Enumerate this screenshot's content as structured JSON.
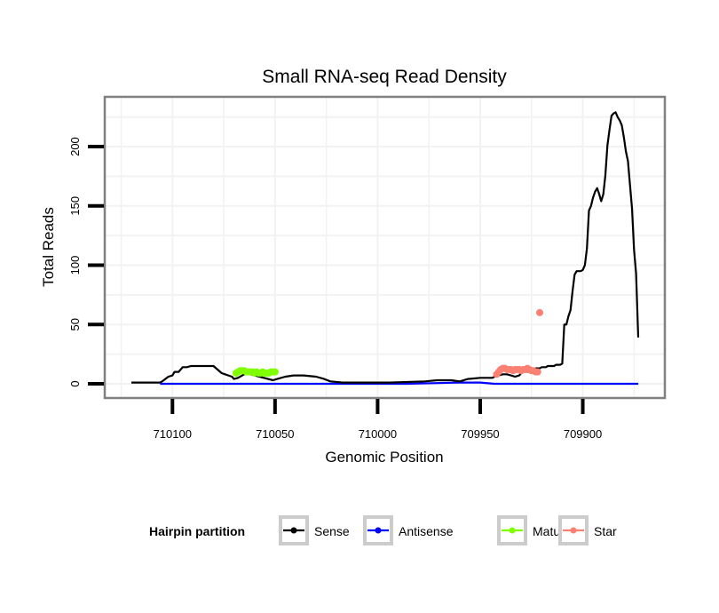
{
  "chart_data": {
    "type": "line",
    "title": "Small RNA-seq Read Density",
    "xlabel": "Genomic Position",
    "ylabel": "Total Reads",
    "x_reversed": true,
    "xlim": [
      710133,
      709860
    ],
    "ylim": [
      -12,
      242
    ],
    "x_ticks": [
      710100,
      710050,
      710000,
      709950,
      709900
    ],
    "x_tick_labels": [
      "710100",
      "710050",
      "710000",
      "709950",
      "709900"
    ],
    "y_ticks": [
      0,
      50,
      100,
      150,
      200
    ],
    "y_tick_labels": [
      "0",
      "50",
      "100",
      "150",
      "200"
    ],
    "grid": true,
    "legend": {
      "title": "Hairpin partition",
      "placement": "bottom",
      "entries": [
        {
          "label": "Sense",
          "color": "#000000"
        },
        {
          "label": "Antisense",
          "color": "#0000ff"
        },
        {
          "label": "Mature",
          "color": "#80ff00"
        },
        {
          "label": "Star",
          "color": "#fa8072"
        }
      ]
    },
    "series": [
      {
        "name": "Sense",
        "color": "#000000",
        "markers": false,
        "x": [
          710120,
          710106,
          710105,
          710102,
          710100,
          710099,
          710097,
          710095,
          710093,
          710091,
          710080,
          710078,
          710076,
          710071,
          710070,
          710068,
          710065,
          710062,
          710051,
          710049,
          710045,
          710041,
          710036,
          710030,
          710026,
          710023,
          710017,
          709994,
          709977,
          709971,
          709964,
          709960,
          709956,
          709950,
          709944,
          709942,
          709941,
          709939,
          709937,
          709935,
          709933,
          709931,
          709930,
          709929,
          709928,
          709927,
          709926,
          709925,
          709924,
          709923,
          709922,
          709921,
          709920,
          709919,
          709918,
          709917,
          709916,
          709915,
          709914,
          709913,
          709912,
          709911,
          709910,
          709909,
          709908,
          709907,
          709906,
          709905,
          709904,
          709903,
          709901,
          709900,
          709899,
          709898,
          709897,
          709896,
          709895,
          709894,
          709893,
          709892,
          709891,
          709890,
          709889,
          709888,
          709887,
          709886,
          709885,
          709884,
          709883,
          709882,
          709881,
          709880,
          709879,
          709878,
          709876,
          709875,
          709874,
          709873
        ],
        "y": [
          1,
          1,
          2,
          6,
          7,
          10,
          10,
          14,
          14,
          15,
          15,
          12,
          9,
          6,
          4,
          5,
          8,
          8,
          3,
          4,
          6,
          7,
          7,
          6,
          4,
          2,
          1,
          1,
          2,
          3,
          3,
          2,
          4,
          5,
          5,
          7,
          7,
          8,
          8,
          7,
          6,
          7,
          9,
          10,
          11,
          10,
          11,
          11,
          12,
          13,
          13,
          13,
          14,
          14,
          14,
          15,
          15,
          15,
          15,
          16,
          16,
          16,
          17,
          50,
          50,
          57,
          62,
          78,
          92,
          95,
          95,
          96,
          100,
          114,
          146,
          150,
          157,
          162,
          165,
          160,
          154,
          160,
          176,
          201,
          214,
          226,
          228,
          229,
          225,
          222,
          218,
          208,
          196,
          188,
          148,
          113,
          93,
          39
        ]
      },
      {
        "name": "Antisense",
        "color": "#0000ff",
        "markers": false,
        "x": [
          710106,
          710100,
          710050,
          710000,
          709986,
          709960,
          709950,
          709943,
          709900,
          709873
        ],
        "y": [
          0,
          0,
          0,
          0,
          0,
          1,
          1,
          0,
          0,
          0
        ]
      },
      {
        "name": "Mature",
        "color": "#80ff00",
        "markers": true,
        "x": [
          710069,
          710068,
          710067,
          710066,
          710065,
          710064,
          710063,
          710062,
          710061,
          710060,
          710059,
          710058,
          710057,
          710056,
          710055,
          710054,
          710053,
          710052,
          710051,
          710050
        ],
        "y": [
          9,
          10,
          11,
          11,
          11,
          10,
          10,
          10,
          10,
          9,
          10,
          9,
          9,
          10,
          9,
          9,
          9,
          10,
          10,
          10
        ]
      },
      {
        "name": "Star",
        "color": "#fa8072",
        "markers": true,
        "x": [
          709942,
          709941,
          709940,
          709939,
          709938,
          709937,
          709936,
          709935,
          709934,
          709933,
          709932,
          709931,
          709930,
          709929,
          709928,
          709927,
          709926,
          709925,
          709924,
          709923,
          709922,
          709921
        ],
        "y": [
          8,
          10,
          12,
          13,
          13,
          12,
          12,
          12,
          11,
          12,
          12,
          12,
          11,
          12,
          12,
          13,
          12,
          11,
          11,
          10,
          10,
          60
        ]
      }
    ]
  }
}
